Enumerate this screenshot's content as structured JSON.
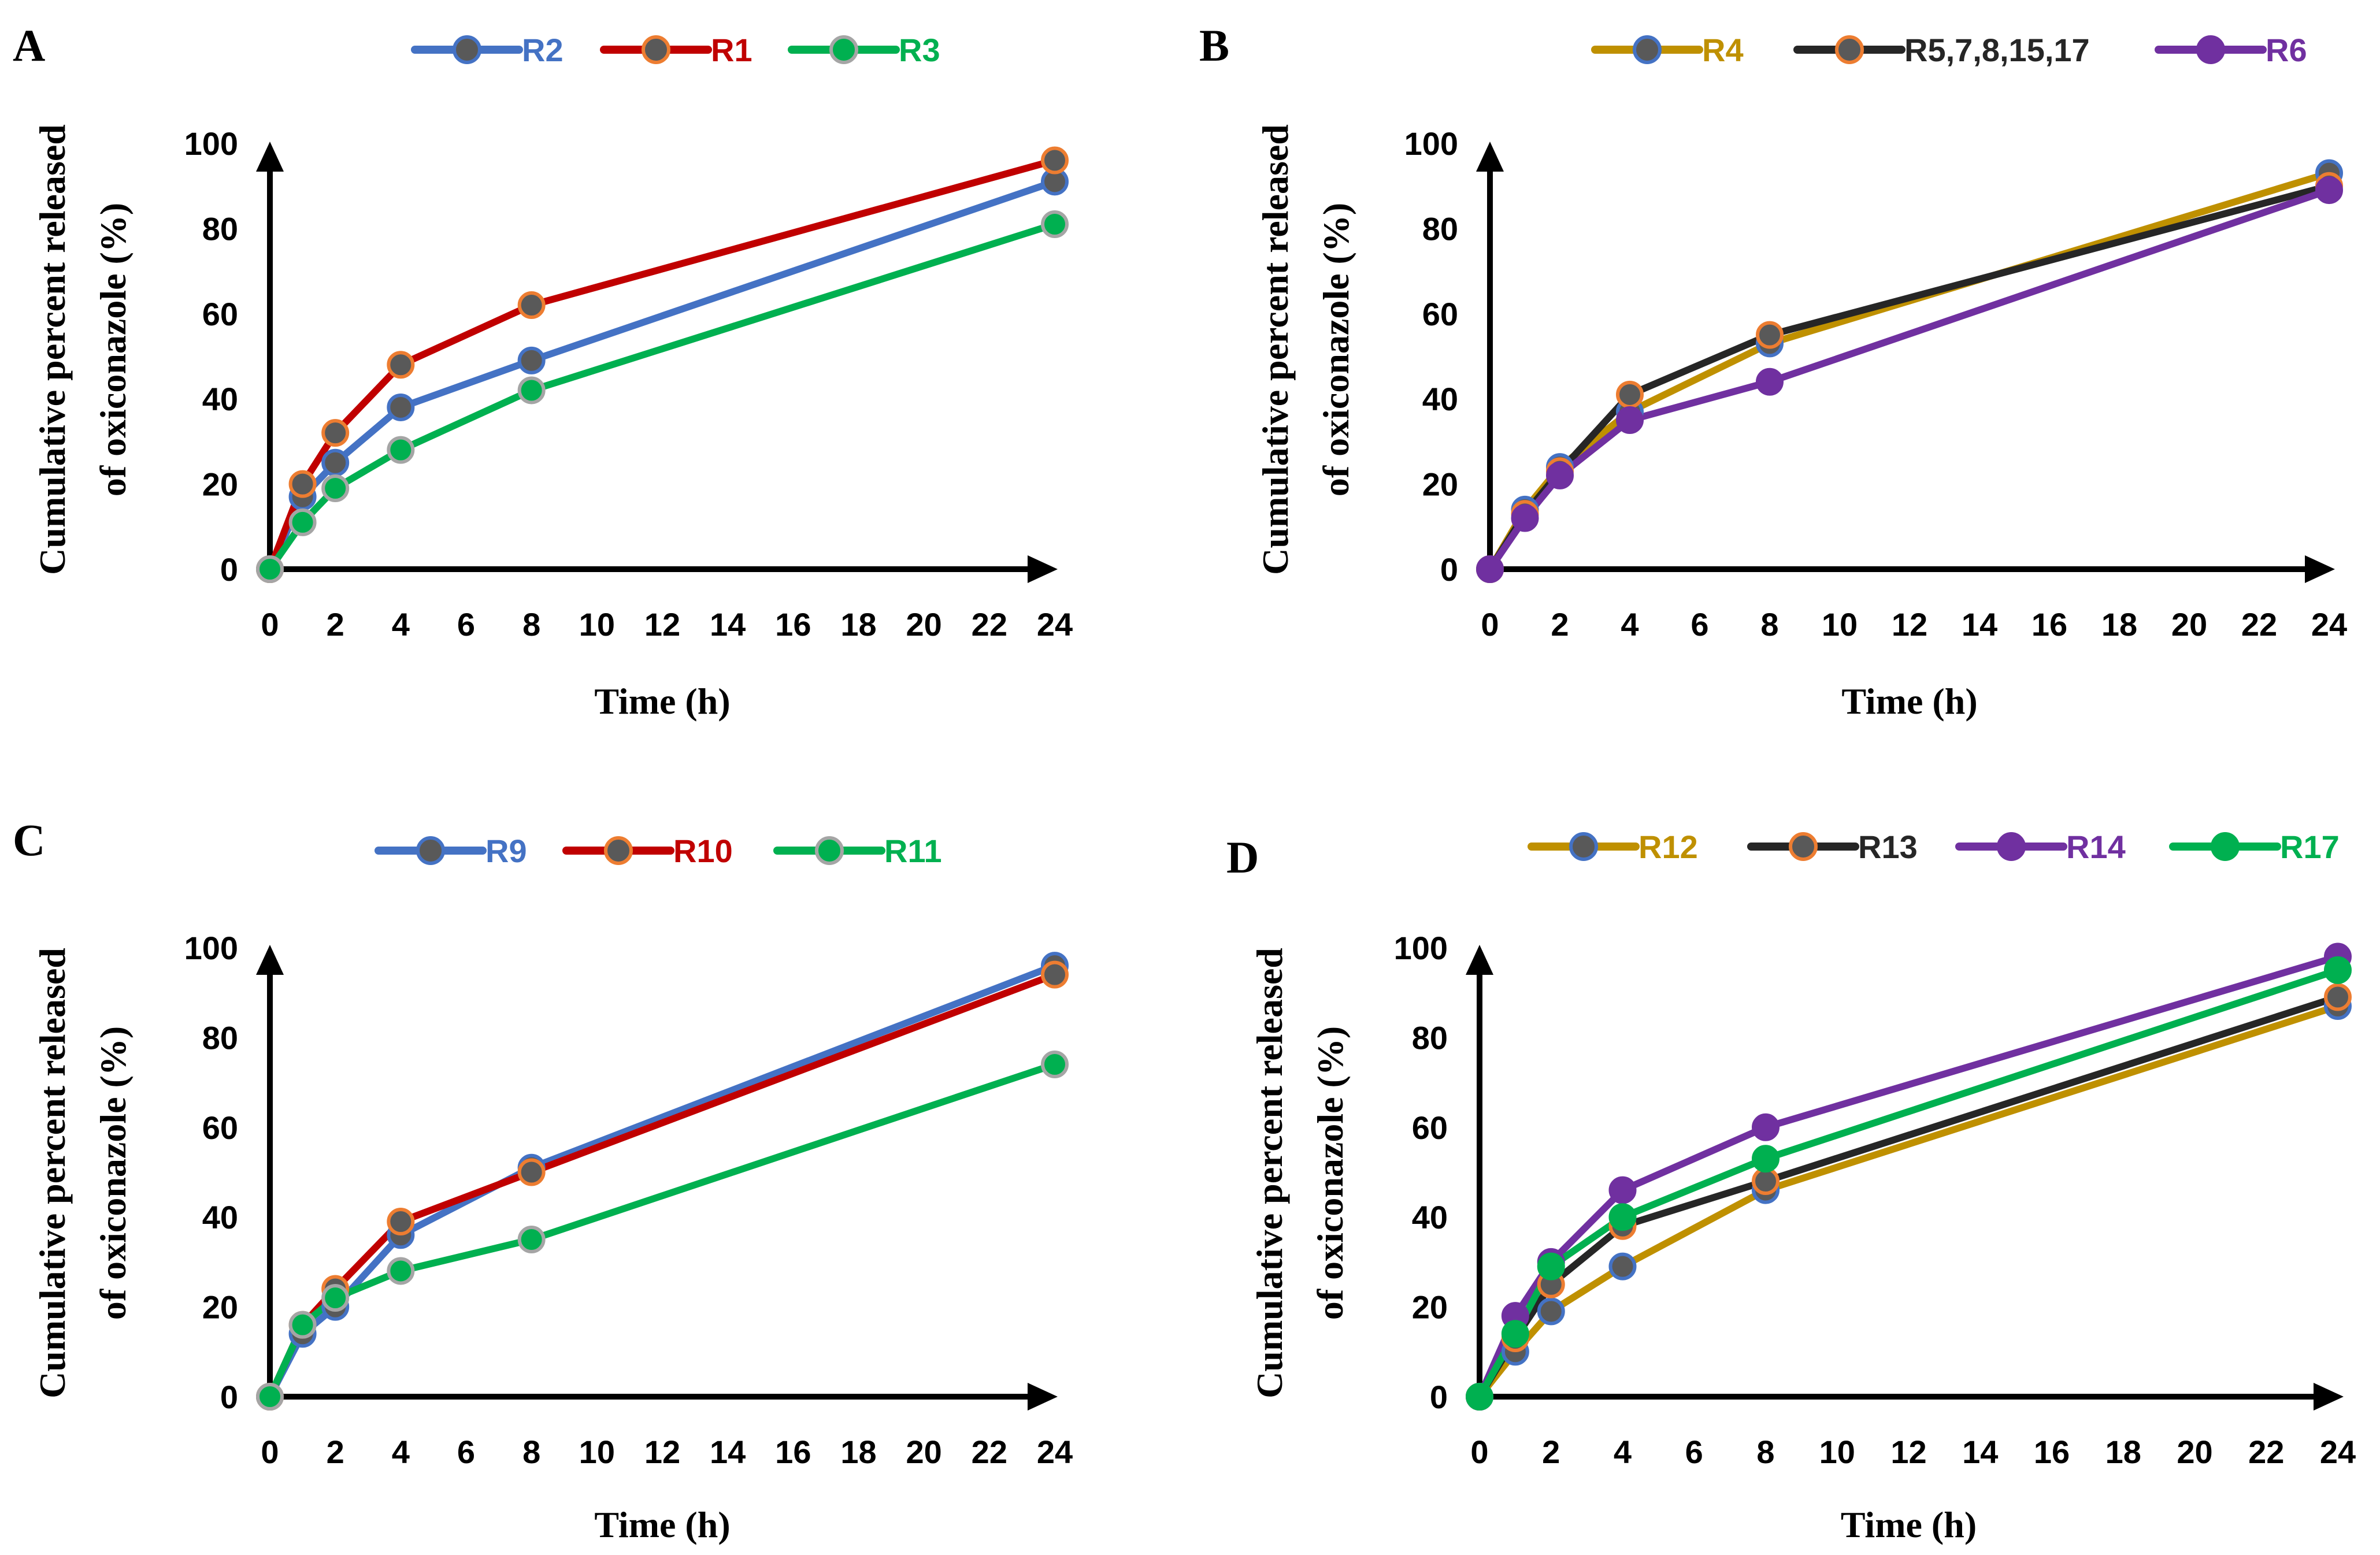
{
  "chart_data": [
    {
      "panel": "A",
      "type": "line",
      "xlabel": "Time (h)",
      "ylabel_line1": "Cumulative percent released",
      "ylabel_line2": "of oxiconazole  (%)",
      "x": [
        0,
        1,
        2,
        4,
        8,
        24
      ],
      "xticks": [
        0,
        2,
        4,
        6,
        8,
        10,
        12,
        14,
        16,
        18,
        20,
        22,
        24
      ],
      "yticks": [
        0,
        20,
        40,
        60,
        80,
        100
      ],
      "ylim": [
        0,
        100
      ],
      "series": [
        {
          "name": "R2",
          "color": "#4472c4",
          "marker_fill": "#595959",
          "marker_edge": "#4472c4",
          "values": [
            0,
            17,
            25,
            38,
            49,
            91
          ]
        },
        {
          "name": "R1",
          "color": "#c00000",
          "marker_fill": "#595959",
          "marker_edge": "#ed7d31",
          "values": [
            0,
            20,
            32,
            48,
            62,
            96
          ]
        },
        {
          "name": "R3",
          "color": "#00b050",
          "marker_fill": "#00b050",
          "marker_edge": "#a5a5a5",
          "values": [
            0,
            11,
            19,
            28,
            42,
            81
          ]
        }
      ]
    },
    {
      "panel": "B",
      "type": "line",
      "xlabel": "Time (h)",
      "ylabel_line1": "Cumulative percent released",
      "ylabel_line2": "of oxiconazole  (%)",
      "x": [
        0,
        1,
        2,
        4,
        8,
        24
      ],
      "xticks": [
        0,
        2,
        4,
        6,
        8,
        10,
        12,
        14,
        16,
        18,
        20,
        22,
        24
      ],
      "yticks": [
        0,
        20,
        40,
        60,
        80,
        100
      ],
      "ylim": [
        0,
        100
      ],
      "series": [
        {
          "name": "R4",
          "color": "#bf9000",
          "marker_fill": "#595959",
          "marker_edge": "#4472c4",
          "values": [
            0,
            14,
            24,
            37,
            53,
            93
          ]
        },
        {
          "name": "R5,7,8,15,17",
          "color": "#262626",
          "marker_fill": "#595959",
          "marker_edge": "#ed7d31",
          "values": [
            0,
            13,
            23,
            41,
            55,
            90
          ]
        },
        {
          "name": "R6",
          "color": "#7030a0",
          "marker_fill": "#7030a0",
          "marker_edge": "#7030a0",
          "values": [
            0,
            12,
            22,
            35,
            44,
            89
          ]
        }
      ]
    },
    {
      "panel": "C",
      "type": "line",
      "xlabel": "Time (h)",
      "ylabel_line1": "Cumulative percent released",
      "ylabel_line2": "of oxiconazole  (%)",
      "x": [
        0,
        1,
        2,
        4,
        8,
        24
      ],
      "xticks": [
        0,
        2,
        4,
        6,
        8,
        10,
        12,
        14,
        16,
        18,
        20,
        22,
        24
      ],
      "yticks": [
        0,
        20,
        40,
        60,
        80,
        100
      ],
      "ylim": [
        0,
        100
      ],
      "series": [
        {
          "name": "R9",
          "color": "#4472c4",
          "marker_fill": "#595959",
          "marker_edge": "#4472c4",
          "values": [
            0,
            14,
            20,
            36,
            51,
            96
          ]
        },
        {
          "name": "R10",
          "color": "#c00000",
          "marker_fill": "#595959",
          "marker_edge": "#ed7d31",
          "values": [
            0,
            16,
            24,
            39,
            50,
            94
          ]
        },
        {
          "name": "R11",
          "color": "#00b050",
          "marker_fill": "#00b050",
          "marker_edge": "#a5a5a5",
          "values": [
            0,
            16,
            22,
            28,
            35,
            74
          ]
        }
      ]
    },
    {
      "panel": "D",
      "type": "line",
      "xlabel": "Time (h)",
      "ylabel_line1": "Cumulative percent released",
      "ylabel_line2": "of oxiconazole  (%)",
      "x": [
        0,
        1,
        2,
        4,
        8,
        24
      ],
      "xticks": [
        0,
        2,
        4,
        6,
        8,
        10,
        12,
        14,
        16,
        18,
        20,
        22,
        24
      ],
      "yticks": [
        0,
        20,
        40,
        60,
        80,
        100
      ],
      "ylim": [
        0,
        100
      ],
      "series": [
        {
          "name": "R12",
          "color": "#bf9000",
          "marker_fill": "#595959",
          "marker_edge": "#4472c4",
          "values": [
            0,
            10,
            19,
            29,
            46,
            87
          ]
        },
        {
          "name": "R13",
          "color": "#262626",
          "marker_fill": "#595959",
          "marker_edge": "#ed7d31",
          "values": [
            0,
            13,
            25,
            38,
            48,
            89
          ]
        },
        {
          "name": "R14",
          "color": "#7030a0",
          "marker_fill": "#7030a0",
          "marker_edge": "#7030a0",
          "values": [
            0,
            18,
            30,
            46,
            60,
            98
          ]
        },
        {
          "name": "R17",
          "color": "#00b050",
          "marker_fill": "#00b050",
          "marker_edge": "#00b050",
          "values": [
            0,
            14,
            29,
            40,
            53,
            95
          ]
        }
      ]
    }
  ]
}
